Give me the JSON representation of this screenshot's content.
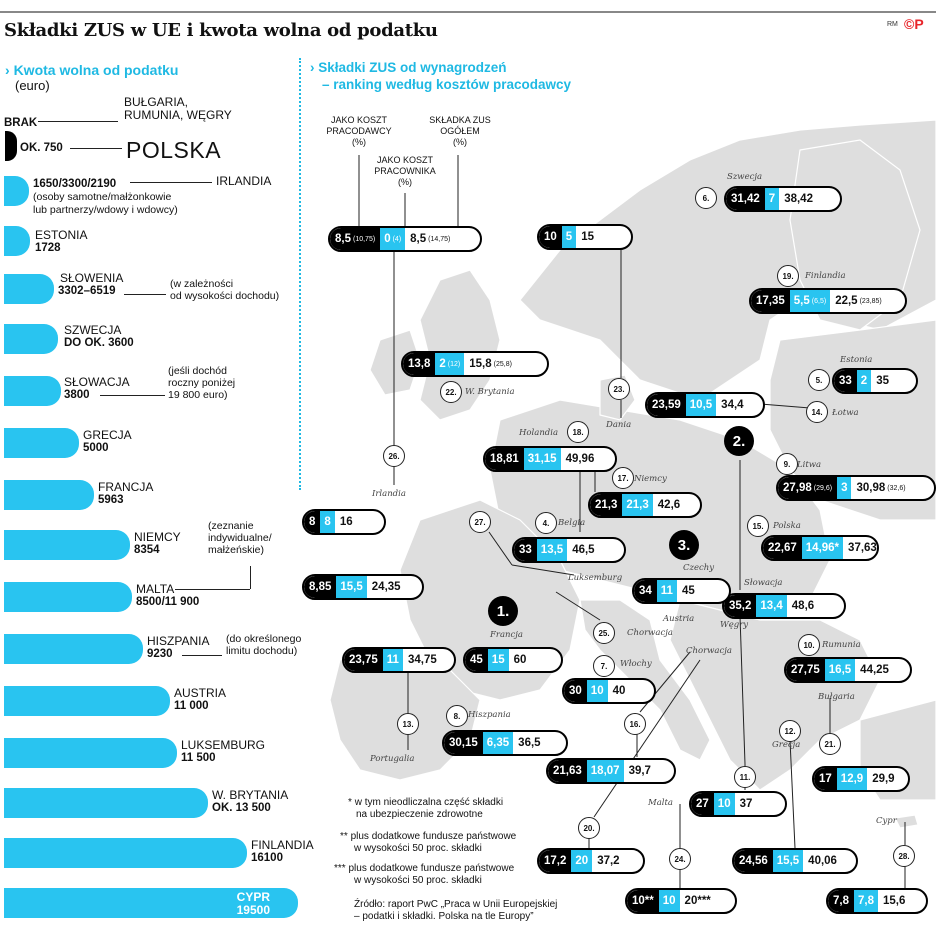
{
  "title": "Składki ZUS w UE i kwota wolna od podatku",
  "logo": {
    "rm": "RM",
    "cp": "©P"
  },
  "left": {
    "header": "Kwota wolna od podatku",
    "unit": "(euro)",
    "brak_label": "BRAK",
    "brak_countries": [
      "BUŁGARIA,",
      "RUMUNIA, WĘGRY"
    ],
    "polska_value": "OK. 750",
    "polska_name": "POLSKA",
    "items": [
      {
        "name": "IRLANDIA",
        "value": "1650/3300/2190",
        "note": [
          "(osoby samotne/małżonkowie",
          "lub partnerzy/wdowy i wdowcy)"
        ],
        "amount": 1650
      },
      {
        "name": "ESTONIA",
        "value": "1728",
        "amount": 1728
      },
      {
        "name": "SŁOWENIA",
        "value": "3302–6519",
        "note": [
          "(w zależności",
          "od wysokości dochodu)"
        ],
        "amount": 3302
      },
      {
        "name": "SZWECJA",
        "value": "DO OK. 3600",
        "amount": 3600
      },
      {
        "name": "SŁOWACJA",
        "value": "3800",
        "note": [
          "(jeśli dochód",
          "roczny poniżej",
          "19 800 euro)"
        ],
        "amount": 3800
      },
      {
        "name": "GRECJA",
        "value": "5000",
        "amount": 5000
      },
      {
        "name": "FRANCJA",
        "value": "5963",
        "amount": 5963
      },
      {
        "name": "NIEMCY",
        "value": "8354",
        "note": [
          "(zeznanie",
          "indywidualne/",
          "małżeńskie)"
        ],
        "amount": 8354
      },
      {
        "name": "MALTA",
        "value": "8500/11 900",
        "amount": 8500
      },
      {
        "name": "HISZPANIA",
        "value": "9230",
        "note": [
          "(do określonego",
          "limitu dochodu)"
        ],
        "amount": 9230
      },
      {
        "name": "AUSTRIA",
        "value": "11 000",
        "amount": 11000
      },
      {
        "name": "LUKSEMBURG",
        "value": "11 500",
        "amount": 11500
      },
      {
        "name": "W. BRYTANIA",
        "value": "OK. 13 500",
        "amount": 13500
      },
      {
        "name": "FINLANDIA",
        "value": "16100",
        "amount": 16100
      },
      {
        "name": "CYPR",
        "value": "19500",
        "amount": 19500
      }
    ]
  },
  "right": {
    "header": [
      "Składki ZUS od wynagrodzeń",
      "– ranking według kosztów pracodawcy"
    ],
    "col_employer": [
      "JAKO KOSZT",
      "PRACODAWCY",
      "(%)"
    ],
    "col_employee": [
      "JAKO KOSZT",
      "PRACOWNIKA",
      "(%)"
    ],
    "col_total": [
      "SKŁADKA ZUS",
      "OGÓŁEM",
      "(%)"
    ]
  },
  "chart_data": {
    "type": "table",
    "title": "Składki ZUS od wynagrodzeń – ranking według kosztów pracodawcy",
    "columns": [
      "jako koszt pracodawcy (%)",
      "jako koszt pracownika (%)",
      "składka ZUS ogółem (%)"
    ],
    "legend": {
      "employer": "8,5",
      "employer_note": "(10,75)",
      "employee": "0",
      "employee_note": "(4)",
      "total": "8,5",
      "total_note": "(14,75)"
    },
    "rows": [
      {
        "rank": "1.",
        "country": "Francja",
        "employer": "45",
        "employee": "15",
        "total": "60"
      },
      {
        "rank": "2.",
        "country": "Słowacja",
        "employer": "35,2",
        "employee": "13,4",
        "total": "48,6"
      },
      {
        "rank": "3.",
        "country": "Czechy",
        "employer": "34",
        "employee": "11",
        "total": "45"
      },
      {
        "rank": "4.",
        "country": "Belgia",
        "employer": "33",
        "employee": "13,5",
        "total": "46,5"
      },
      {
        "rank": "5.",
        "country": "Estonia",
        "employer": "33",
        "employee": "2",
        "total": "35"
      },
      {
        "rank": "6.",
        "country": "Szwecja",
        "employer": "31,42",
        "employee": "7",
        "total": "38,42"
      },
      {
        "rank": "7.",
        "country": "Włochy",
        "employer": "30",
        "employee": "10",
        "total": "40"
      },
      {
        "rank": "8.",
        "country": "Hiszpania",
        "employer": "30,15",
        "employee": "6,35",
        "total": "36,5"
      },
      {
        "rank": "9.",
        "country": "Litwa",
        "employer": "27,98",
        "employer_note": "(29,6)",
        "employee": "3",
        "total": "30,98",
        "total_note": "(32,6)"
      },
      {
        "rank": "10.",
        "country": "Rumunia",
        "employer": "27,75",
        "employee": "16,5",
        "total": "44,25"
      },
      {
        "rank": "11.",
        "country": "Węgry",
        "employer": "27",
        "employee": "10",
        "total": "37"
      },
      {
        "rank": "12.",
        "country": "Grecja",
        "employer": "24,56",
        "employee": "15,5",
        "total": "40,06"
      },
      {
        "rank": "13.",
        "country": "Portugalia",
        "employer": "23,75",
        "employee": "11",
        "total": "34,75"
      },
      {
        "rank": "14.",
        "country": "Łotwa",
        "employer": "23,59",
        "employee": "10,5",
        "total": "34,4"
      },
      {
        "rank": "15.",
        "country": "Polska",
        "employer": "22,67",
        "employee": "14,96*",
        "total": "37,63"
      },
      {
        "rank": "16.",
        "country": "Austria",
        "employer": "21,63",
        "employee": "18,07",
        "total": "39,7"
      },
      {
        "rank": "17.",
        "country": "Niemcy",
        "employer": "21,3",
        "employee": "21,3",
        "total": "42,6"
      },
      {
        "rank": "18.",
        "country": "Holandia",
        "employer": "18,81",
        "employee": "31,15",
        "total": "49,96"
      },
      {
        "rank": "19.",
        "country": "Finlandia",
        "employer": "17,35",
        "employee": "5,5",
        "employee_note": "(6,5)",
        "total": "22,5",
        "total_note": "(23,85)"
      },
      {
        "rank": "20.",
        "country": "Słowenia",
        "employer": "17,2",
        "employee": "20",
        "total": "37,2"
      },
      {
        "rank": "21.",
        "country": "Bułgaria",
        "employer": "17",
        "employee": "12,9",
        "total": "29,9"
      },
      {
        "rank": "22.",
        "country": "W. Brytania",
        "employer": "13,8",
        "employee": "2",
        "employee_note": "(12)",
        "total": "15,8",
        "total_note": "(25,8)"
      },
      {
        "rank": "23.",
        "country": "Dania",
        "employer": "10",
        "employee": "5",
        "total": "15"
      },
      {
        "rank": "24.",
        "country": "Malta",
        "employer": "10**",
        "employee": "10",
        "total": "20***"
      },
      {
        "rank": "25.",
        "country": "Chorwacja",
        "employer": "",
        "employee": "",
        "total": ""
      },
      {
        "rank": "26.",
        "country": "Irlandia",
        "employer": "8,5",
        "employer_note": "(10,75)",
        "employee": "0",
        "employee_note": "(4)",
        "total": "8,5",
        "total_note": "(14,75)"
      },
      {
        "rank": "27.",
        "country": "Luksemburg",
        "employer": "8,85",
        "employee": "15,5",
        "total": "24,35"
      },
      {
        "rank": "28.",
        "country": "Cypr",
        "employer": "7,8",
        "employee": "7,8",
        "total": "15,6"
      }
    ],
    "extra_pill": {
      "employer": "8",
      "employee": "8",
      "total": "16"
    }
  },
  "footnotes": [
    {
      "mark": "*",
      "lines": [
        "w tym nieodliczalna część składki",
        "na ubezpieczenie zdrowotne"
      ]
    },
    {
      "mark": "**",
      "lines": [
        "plus dodatkowe fundusze państwowe",
        "w wysokości 50 proc. składki"
      ]
    },
    {
      "mark": "***",
      "lines": [
        "plus dodatkowe fundusze państwowe",
        "w wysokości 50 proc. składki"
      ]
    }
  ],
  "source": [
    "Źródło: raport PwC „Praca w Unii Europejskiej",
    "– podatki i składki. Polska na tle Europy”"
  ],
  "colors": {
    "accent": "#29c4f0",
    "black": "#000000",
    "map": "#d9d9d9",
    "brand": "#e8262b"
  }
}
